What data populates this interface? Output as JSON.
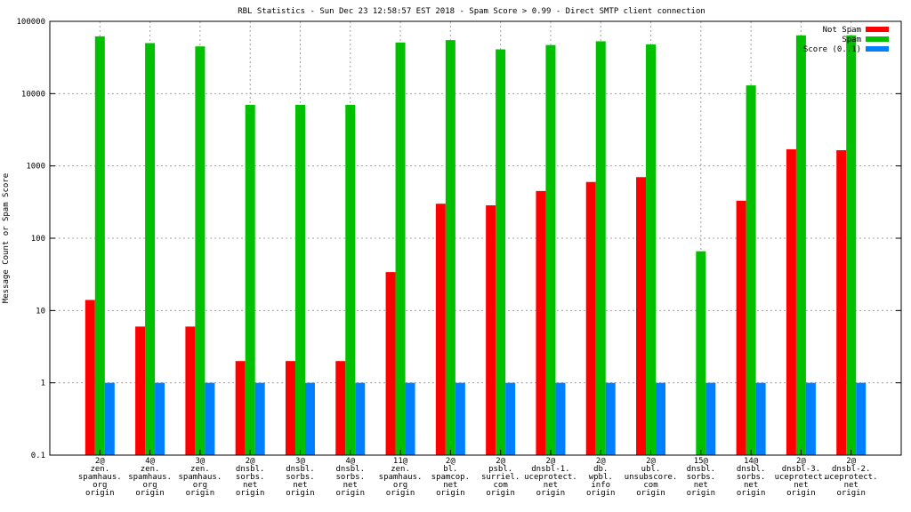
{
  "chart_data": {
    "type": "bar",
    "scale": "log",
    "title": "RBL Statistics - Sun Dec 23 12:58:57 EST 2018 - Spam Score > 0.99 - Direct SMTP client connection",
    "ylabel": "Message Count or Spam Score",
    "xlabel": "",
    "ylim": [
      0.1,
      100000
    ],
    "y_ticks": [
      "0.1",
      "1",
      "10",
      "100",
      "1000",
      "10000",
      "100000"
    ],
    "grid": true,
    "legend_position": "top-right",
    "categories": [
      [
        "2@",
        "zen.",
        "spamhaus.",
        "org",
        "origin"
      ],
      [
        "4@",
        "zen.",
        "spamhaus.",
        "org",
        "origin"
      ],
      [
        "3@",
        "zen.",
        "spamhaus.",
        "org",
        "origin"
      ],
      [
        "2@",
        "dnsbl.",
        "sorbs.",
        "net",
        "origin"
      ],
      [
        "3@",
        "dnsbl.",
        "sorbs.",
        "net",
        "origin"
      ],
      [
        "4@",
        "dnsbl.",
        "sorbs.",
        "net",
        "origin"
      ],
      [
        "11@",
        "zen.",
        "spamhaus.",
        "org",
        "origin"
      ],
      [
        "2@",
        "bl.",
        "spamcop.",
        "net",
        "origin"
      ],
      [
        "2@",
        "psbl.",
        "surriel.",
        "com",
        "origin"
      ],
      [
        "2@",
        "dnsbl-1.",
        "uceprotect.",
        "net",
        "origin"
      ],
      [
        "2@",
        "db.",
        "wpbl.",
        "info",
        "origin"
      ],
      [
        "2@",
        "ubl.",
        "unsubscore.",
        "com",
        "origin"
      ],
      [
        "15@",
        "dnsbl.",
        "sorbs.",
        "net",
        "origin"
      ],
      [
        "14@",
        "dnsbl.",
        "sorbs.",
        "net",
        "origin"
      ],
      [
        "2@",
        "dnsbl-3.",
        "uceprotect.",
        "net",
        "origin"
      ],
      [
        "2@",
        "dnsbl-2.",
        "uceprotect.",
        "net",
        "origin"
      ]
    ],
    "series": [
      {
        "name": "Not Spam",
        "color": "#ff0000",
        "values": [
          14,
          6,
          6,
          2,
          2,
          2,
          34,
          300,
          285,
          450,
          600,
          700,
          null,
          330,
          1700,
          1650
        ]
      },
      {
        "name": "Spam",
        "color": "#00c000",
        "values": [
          62000,
          50000,
          45000,
          7000,
          7000,
          7000,
          51000,
          55000,
          41000,
          47000,
          53000,
          48000,
          66,
          13000,
          64000,
          64000
        ]
      },
      {
        "name": "Score (0..1)",
        "color": "#0080ff",
        "values": [
          1,
          1,
          1,
          1,
          1,
          1,
          1,
          1,
          1,
          1,
          1,
          1,
          1,
          1,
          1,
          1
        ]
      }
    ]
  }
}
